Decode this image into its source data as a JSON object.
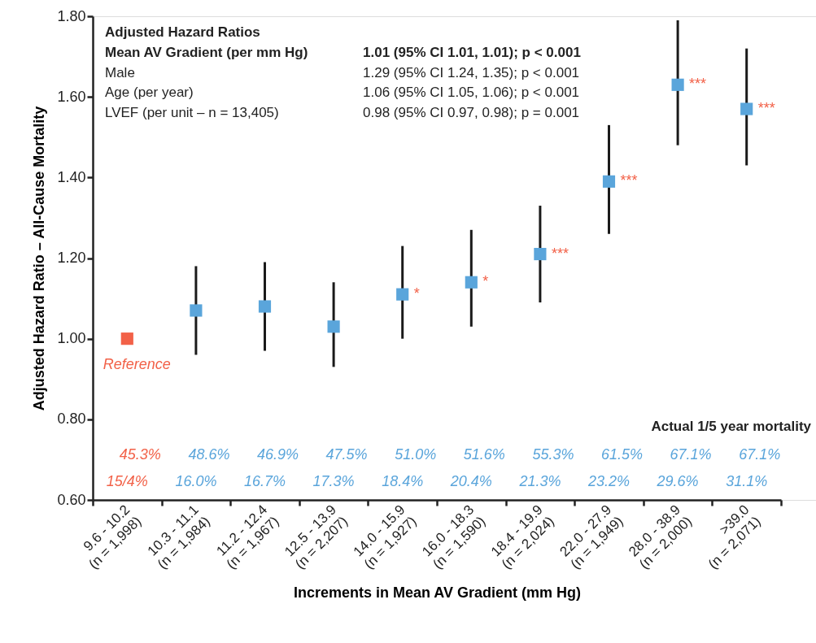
{
  "chart_data": {
    "type": "scatter",
    "xlabel": "Increments in Mean AV Gradient (mm Hg)",
    "ylabel": "Adjusted Hazard Ratio – All-Cause Mortality",
    "categories": [
      "9.6 - 10.2\n(n = 1,998)",
      "10.3 - 11.1\n(n = 1,984)",
      "11.2 - 12.4\n(n = 1,967)",
      "12.5 - 13.9\n(n = 2,207)",
      "14.0 - 15.9\n(n = 1,927)",
      "16.0 - 18.3\n(n = 1,590)",
      "18.4 - 19.9\n(n = 2,024)",
      "22.0 - 27.9\n(n = 1,949)",
      "28.0 - 38.9\n(n = 2,000)",
      ">39.0\n(n = 2,071)"
    ],
    "series": [
      {
        "colors": [
          "#f26148",
          "#5aa5db",
          "#5aa5db",
          "#5aa5db",
          "#5aa5db",
          "#5aa5db",
          "#5aa5db",
          "#5aa5db",
          "#5aa5db",
          "#5aa5db"
        ],
        "values": [
          1.0,
          1.07,
          1.08,
          1.03,
          1.11,
          1.14,
          1.21,
          1.39,
          1.63,
          1.57
        ],
        "errors": [
          null,
          [
            0.96,
            1.18
          ],
          [
            0.97,
            1.19
          ],
          [
            0.93,
            1.14
          ],
          [
            1.0,
            1.23
          ],
          [
            1.03,
            1.27
          ],
          [
            1.09,
            1.33
          ],
          [
            1.26,
            1.53
          ],
          [
            1.48,
            1.79
          ],
          [
            1.43,
            1.72
          ]
        ]
      }
    ],
    "ylim": [
      0.6,
      1.8
    ],
    "yticks": [
      {
        "value": 0.6,
        "label": "0.60"
      },
      {
        "value": 0.8,
        "label": "0.80"
      },
      {
        "value": 1.0,
        "label": "1.00"
      },
      {
        "value": 1.2,
        "label": "1.20"
      },
      {
        "value": 1.4,
        "label": "1.40"
      },
      {
        "value": 1.6,
        "label": "1.60"
      },
      {
        "value": 1.8,
        "label": "1.80"
      }
    ],
    "grid": false,
    "legend": false,
    "marker": "square",
    "annotations": [
      "Adjusted Hazard Ratios",
      "Mean AV Gradient (per mm Hg)",
      "1.01 (95% CI 1.01, 1.01); p < 0.001",
      "Male",
      "1.29 (95% CI 1.24, 1.35); p < 0.001",
      "Age (per year)",
      "1.06 (95% CI 1.05, 1.06); p < 0.001",
      "LVEF (per unit – n = 13,405)",
      "0.98 (95% CI 0.97, 0.98); p = 0.001",
      "Actual 1/5 year mortality",
      "Reference",
      "*",
      "*",
      "***",
      "***",
      "***",
      "***",
      "45.3%",
      "15/4%",
      "48.6%",
      "16.0%",
      "46.9%",
      "16.7%",
      "47.5%",
      "17.3%",
      "51.0%",
      "18.4%",
      "51.6%",
      "20.4%",
      "55.3%",
      "21.3%",
      "61.5%",
      "23.2%",
      "67.1%",
      "29.6%",
      "67.1%",
      "31.1%"
    ]
  }
}
